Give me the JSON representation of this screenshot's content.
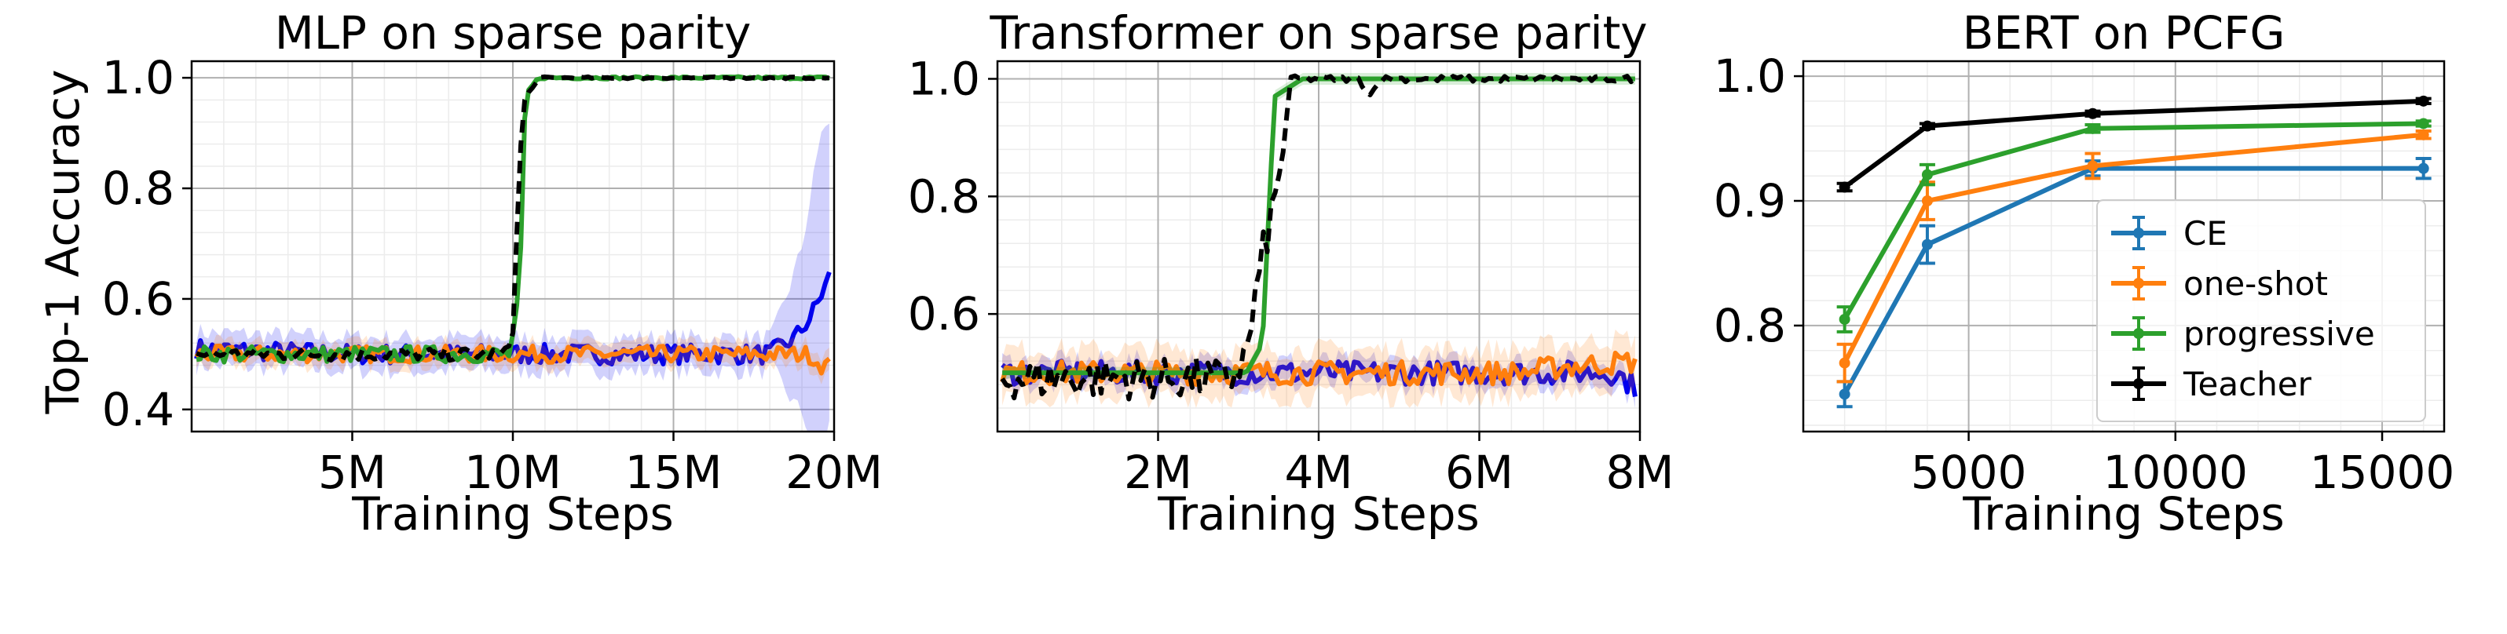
{
  "figure": {
    "ylabel": "Top-1 Accuracy"
  },
  "chart_data": [
    {
      "type": "line",
      "title": "MLP on sparse parity",
      "xlabel": "Training Steps",
      "ylabel": "Top-1 Accuracy",
      "xlim": [
        0,
        20000000
      ],
      "ylim": [
        0.36,
        1.03
      ],
      "xticks": [
        {
          "v": 5000000,
          "label": "5M"
        },
        {
          "v": 10000000,
          "label": "10M"
        },
        {
          "v": 15000000,
          "label": "15M"
        },
        {
          "v": 20000000,
          "label": "20M"
        }
      ],
      "yticks": [
        {
          "v": 0.4,
          "label": "0.4"
        },
        {
          "v": 0.6,
          "label": "0.6"
        },
        {
          "v": 0.8,
          "label": "0.8"
        },
        {
          "v": 1.0,
          "label": "1.0"
        }
      ],
      "grid": true,
      "series": [
        {
          "color": "#0000ee",
          "dash": "",
          "noise": 0.018,
          "band": 0.03,
          "points": [
            [
              0,
              0.51
            ],
            [
              5000000,
              0.5
            ],
            [
              10000000,
              0.5
            ],
            [
              15000000,
              0.5
            ],
            [
              18000000,
              0.5
            ],
            [
              18800000,
              0.53
            ],
            [
              19300000,
              0.57
            ],
            [
              19700000,
              0.62
            ],
            [
              20000000,
              0.66
            ]
          ],
          "band_points": [
            [
              18000000,
              0.02
            ],
            [
              19000000,
              0.15
            ],
            [
              19600000,
              0.3
            ],
            [
              20000000,
              0.25
            ]
          ]
        },
        {
          "color": "#ff7f0e",
          "dash": "",
          "noise": 0.015,
          "band": 0.02,
          "points": [
            [
              0,
              0.5
            ],
            [
              10000000,
              0.5
            ],
            [
              18500000,
              0.5
            ],
            [
              19200000,
              0.5
            ],
            [
              19600000,
              0.48
            ],
            [
              20000000,
              0.48
            ]
          ]
        },
        {
          "color": "#2ca02c",
          "dash": "",
          "noise": 0.015,
          "band": 0,
          "points": [
            [
              0,
              0.5
            ],
            [
              9900000,
              0.5
            ],
            [
              10200000,
              0.6
            ],
            [
              10400000,
              0.97
            ],
            [
              10800000,
              1.0
            ],
            [
              20000000,
              1.0
            ]
          ]
        },
        {
          "color": "#000000",
          "dash": "16,10",
          "noise": 0.012,
          "band": 0,
          "points": [
            [
              0,
              0.5
            ],
            [
              9800000,
              0.5
            ],
            [
              10000000,
              0.55
            ],
            [
              10300000,
              0.95
            ],
            [
              10800000,
              1.0
            ],
            [
              20000000,
              1.0
            ]
          ]
        }
      ]
    },
    {
      "type": "line",
      "title": "Transformer on sparse parity",
      "xlabel": "Training Steps",
      "xlim": [
        0,
        8000000
      ],
      "ylim": [
        0.4,
        1.03
      ],
      "xticks": [
        {
          "v": 2000000,
          "label": "2M"
        },
        {
          "v": 4000000,
          "label": "4M"
        },
        {
          "v": 6000000,
          "label": "6M"
        },
        {
          "v": 8000000,
          "label": "8M"
        }
      ],
      "yticks": [
        {
          "v": 0.6,
          "label": "0.6"
        },
        {
          "v": 0.8,
          "label": "0.8"
        },
        {
          "v": 1.0,
          "label": "1.0"
        }
      ],
      "grid": true,
      "series": [
        {
          "color": "#0000ee",
          "dash": "",
          "noise": 0.02,
          "band": 0.02,
          "points": [
            [
              0,
              0.5
            ],
            [
              7700000,
              0.5
            ],
            [
              8000000,
              0.47
            ]
          ]
        },
        {
          "color": "#ff7f0e",
          "dash": "",
          "noise": 0.02,
          "band": 0.04,
          "points": [
            [
              0,
              0.5
            ],
            [
              6500000,
              0.5
            ],
            [
              7000000,
              0.51
            ],
            [
              8000000,
              0.52
            ]
          ]
        },
        {
          "color": "#2ca02c",
          "dash": "",
          "noise": 0.0,
          "band": 0.01,
          "points": [
            [
              0,
              0.5
            ],
            [
              3100000,
              0.5
            ],
            [
              3300000,
              0.55
            ],
            [
              3450000,
              0.97
            ],
            [
              3800000,
              1.0
            ],
            [
              8000000,
              1.0
            ]
          ]
        },
        {
          "color": "#000000",
          "dash": "16,10",
          "noise": 0.035,
          "band": 0,
          "points": [
            [
              0,
              0.49
            ],
            [
              2900000,
              0.49
            ],
            [
              3100000,
              0.53
            ],
            [
              3300000,
              0.7
            ],
            [
              3500000,
              0.82
            ],
            [
              3650000,
              1.0
            ],
            [
              4500000,
              1.0
            ],
            [
              4650000,
              0.97
            ],
            [
              4750000,
              1.0
            ],
            [
              8000000,
              1.0
            ]
          ]
        }
      ]
    },
    {
      "type": "line",
      "title": "BERT on PCFG",
      "xlabel": "Training Steps",
      "xlim": [
        1000,
        16500
      ],
      "ylim": [
        0.715,
        1.012
      ],
      "xticks": [
        {
          "v": 5000,
          "label": "5000"
        },
        {
          "v": 10000,
          "label": "10000"
        },
        {
          "v": 15000,
          "label": "15000"
        }
      ],
      "yticks": [
        {
          "v": 0.8,
          "label": "0.8"
        },
        {
          "v": 0.9,
          "label": "0.9"
        },
        {
          "v": 1.0,
          "label": "1.0"
        }
      ],
      "grid": true,
      "legend_position": "center-right",
      "x": [
        2000,
        4000,
        8000,
        16000
      ],
      "series": [
        {
          "name": "CE",
          "color": "#1f77b4",
          "values": [
            0.745,
            0.865,
            0.926,
            0.926
          ],
          "err": [
            0.01,
            0.015,
            0.006,
            0.008
          ]
        },
        {
          "name": "one-shot",
          "color": "#ff7f0e",
          "values": [
            0.77,
            0.9,
            0.928,
            0.953
          ],
          "err": [
            0.015,
            0.015,
            0.01,
            0.003
          ]
        },
        {
          "name": "progressive",
          "color": "#2ca02c",
          "values": [
            0.805,
            0.921,
            0.958,
            0.962
          ],
          "err": [
            0.01,
            0.008,
            0.003,
            0.002
          ]
        },
        {
          "name": "Teacher",
          "color": "#000000",
          "values": [
            0.911,
            0.96,
            0.97,
            0.98
          ],
          "err": [
            0.003,
            0.002,
            0.002,
            0.002
          ]
        }
      ]
    }
  ]
}
